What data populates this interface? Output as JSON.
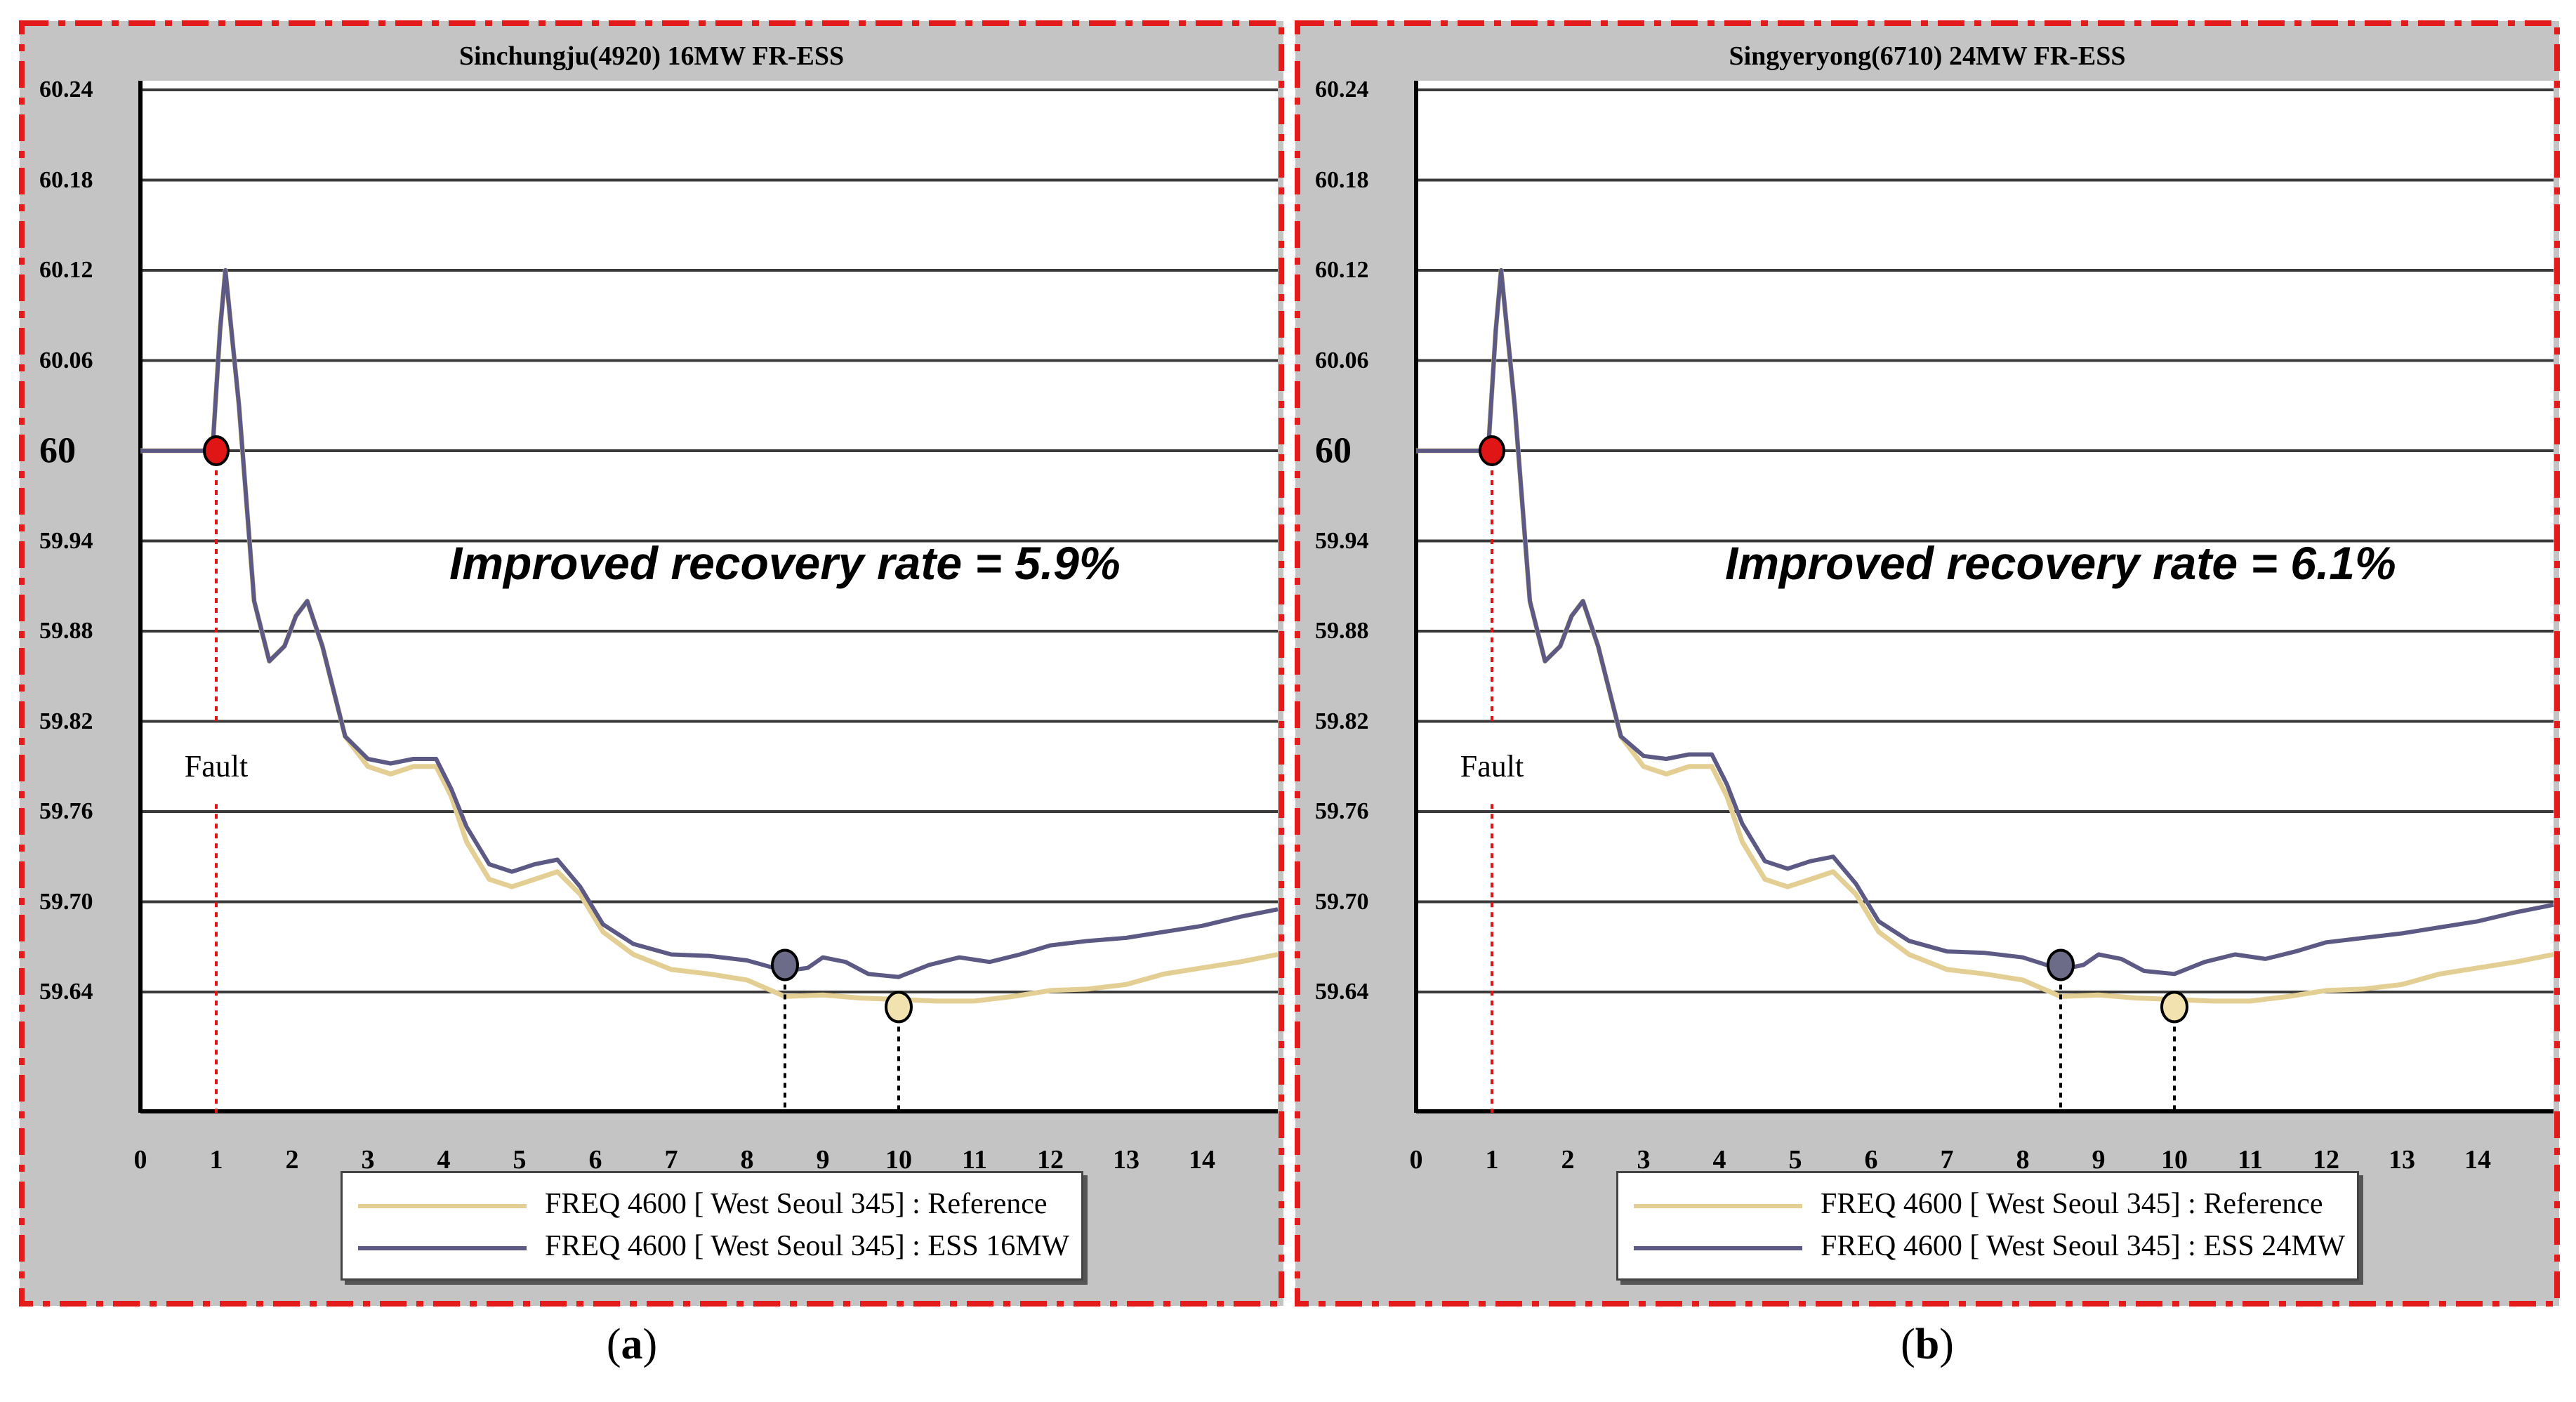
{
  "colors": {
    "reference": "#e3cf94",
    "ess": "#5c5a84",
    "fault_marker": "#e01616",
    "frame": "#e41b1b",
    "grid": "#3a3a3a",
    "panel_bg": "#c4c4c4"
  },
  "chart_data": [
    {
      "type": "line",
      "panel_label": "a",
      "title": "Sinchungju(4920) 16MW FR-ESS",
      "xlabel": "",
      "ylabel": "",
      "xlim": [
        0,
        15
      ],
      "ylim": [
        59.58,
        60.24
      ],
      "x_ticks": [
        0,
        1,
        2,
        3,
        4,
        5,
        6,
        7,
        8,
        9,
        10,
        11,
        12,
        13,
        14
      ],
      "y_ticks": [
        "60.24",
        "60.18",
        "60.12",
        "60.06",
        "60",
        "59.94",
        "59.88",
        "59.82",
        "59.76",
        "59.70",
        "59.64"
      ],
      "grid": true,
      "annotation": "Improved recovery rate  =  5.9%",
      "fault_label": "Fault",
      "fault_point": [
        1.0,
        60.0
      ],
      "ess_marker": [
        8.5,
        59.658
      ],
      "ref_marker": [
        10.0,
        59.63
      ],
      "series": [
        {
          "name": "FREQ 4600 [ West Seoul 345] : Reference",
          "role": "reference",
          "x": [
            0,
            0.5,
            0.95,
            1.05,
            1.12,
            1.3,
            1.5,
            1.7,
            1.9,
            2.05,
            2.2,
            2.4,
            2.7,
            3.0,
            3.3,
            3.6,
            3.9,
            4.1,
            4.3,
            4.6,
            4.9,
            5.2,
            5.5,
            5.8,
            6.1,
            6.5,
            7.0,
            7.5,
            8.0,
            8.5,
            9.0,
            9.5,
            10.0,
            10.5,
            11.0,
            11.5,
            12.0,
            12.5,
            13.0,
            13.5,
            14.0,
            14.5,
            15.0
          ],
          "y": [
            60.0,
            60.0,
            60.0,
            60.08,
            60.12,
            60.03,
            59.9,
            59.86,
            59.87,
            59.89,
            59.9,
            59.87,
            59.81,
            59.79,
            59.785,
            59.79,
            59.79,
            59.77,
            59.74,
            59.715,
            59.71,
            59.715,
            59.72,
            59.705,
            59.68,
            59.665,
            59.655,
            59.652,
            59.648,
            59.637,
            59.638,
            59.636,
            59.635,
            59.634,
            59.634,
            59.637,
            59.641,
            59.642,
            59.645,
            59.652,
            59.656,
            59.66,
            59.665
          ]
        },
        {
          "name": "FREQ 4600 [ West Seoul 345] : ESS 16MW",
          "role": "ess",
          "x": [
            0,
            0.5,
            0.95,
            1.05,
            1.12,
            1.3,
            1.5,
            1.7,
            1.9,
            2.05,
            2.2,
            2.4,
            2.7,
            3.0,
            3.3,
            3.6,
            3.9,
            4.1,
            4.3,
            4.6,
            4.9,
            5.2,
            5.5,
            5.8,
            6.1,
            6.5,
            7.0,
            7.5,
            8.0,
            8.5,
            8.8,
            9.0,
            9.3,
            9.6,
            10.0,
            10.4,
            10.8,
            11.2,
            11.6,
            12.0,
            12.5,
            13.0,
            13.5,
            14.0,
            14.5,
            15.0
          ],
          "y": [
            60.0,
            60.0,
            60.0,
            60.08,
            60.12,
            60.03,
            59.9,
            59.86,
            59.87,
            59.89,
            59.9,
            59.87,
            59.81,
            59.795,
            59.792,
            59.795,
            59.795,
            59.775,
            59.75,
            59.725,
            59.72,
            59.725,
            59.728,
            59.71,
            59.685,
            59.672,
            59.665,
            59.664,
            59.661,
            59.654,
            59.656,
            59.663,
            59.66,
            59.652,
            59.65,
            59.658,
            59.663,
            59.66,
            59.665,
            59.671,
            59.674,
            59.676,
            59.68,
            59.684,
            59.69,
            59.695
          ]
        }
      ]
    },
    {
      "type": "line",
      "panel_label": "b",
      "title": "Singyeryong(6710) 24MW FR-ESS",
      "xlabel": "",
      "ylabel": "",
      "xlim": [
        0,
        15
      ],
      "ylim": [
        59.58,
        60.24
      ],
      "x_ticks": [
        0,
        1,
        2,
        3,
        4,
        5,
        6,
        7,
        8,
        9,
        10,
        11,
        12,
        13,
        14
      ],
      "y_ticks": [
        "60.24",
        "60.18",
        "60.12",
        "60.06",
        "60",
        "59.94",
        "59.88",
        "59.82",
        "59.76",
        "59.70",
        "59.64"
      ],
      "grid": true,
      "annotation": "Improved recovery rate  =  6.1%",
      "fault_label": "Fault",
      "fault_point": [
        1.0,
        60.0
      ],
      "ess_marker": [
        8.5,
        59.658
      ],
      "ref_marker": [
        10.0,
        59.63
      ],
      "series": [
        {
          "name": "FREQ 4600 [ West Seoul 345] : Reference",
          "role": "reference",
          "x": [
            0,
            0.5,
            0.95,
            1.05,
            1.12,
            1.3,
            1.5,
            1.7,
            1.9,
            2.05,
            2.2,
            2.4,
            2.7,
            3.0,
            3.3,
            3.6,
            3.9,
            4.1,
            4.3,
            4.6,
            4.9,
            5.2,
            5.5,
            5.8,
            6.1,
            6.5,
            7.0,
            7.5,
            8.0,
            8.5,
            9.0,
            9.5,
            10.0,
            10.5,
            11.0,
            11.5,
            12.0,
            12.5,
            13.0,
            13.5,
            14.0,
            14.5,
            15.0
          ],
          "y": [
            60.0,
            60.0,
            60.0,
            60.08,
            60.12,
            60.03,
            59.9,
            59.86,
            59.87,
            59.89,
            59.9,
            59.87,
            59.81,
            59.79,
            59.785,
            59.79,
            59.79,
            59.77,
            59.74,
            59.715,
            59.71,
            59.715,
            59.72,
            59.705,
            59.68,
            59.665,
            59.655,
            59.652,
            59.648,
            59.637,
            59.638,
            59.636,
            59.635,
            59.634,
            59.634,
            59.637,
            59.641,
            59.642,
            59.645,
            59.652,
            59.656,
            59.66,
            59.665
          ]
        },
        {
          "name": "FREQ 4600 [ West Seoul 345] : ESS 24MW",
          "role": "ess",
          "x": [
            0,
            0.5,
            0.95,
            1.05,
            1.12,
            1.3,
            1.5,
            1.7,
            1.9,
            2.05,
            2.2,
            2.4,
            2.7,
            3.0,
            3.3,
            3.6,
            3.9,
            4.1,
            4.3,
            4.6,
            4.9,
            5.2,
            5.5,
            5.8,
            6.1,
            6.5,
            7.0,
            7.5,
            8.0,
            8.5,
            8.8,
            9.0,
            9.3,
            9.6,
            10.0,
            10.4,
            10.8,
            11.2,
            11.6,
            12.0,
            12.5,
            13.0,
            13.5,
            14.0,
            14.5,
            15.0
          ],
          "y": [
            60.0,
            60.0,
            60.0,
            60.08,
            60.12,
            60.03,
            59.9,
            59.86,
            59.87,
            59.89,
            59.9,
            59.87,
            59.81,
            59.797,
            59.795,
            59.798,
            59.798,
            59.778,
            59.752,
            59.727,
            59.722,
            59.727,
            59.73,
            59.712,
            59.687,
            59.674,
            59.667,
            59.666,
            59.663,
            59.655,
            59.658,
            59.665,
            59.662,
            59.654,
            59.652,
            59.66,
            59.665,
            59.662,
            59.667,
            59.673,
            59.676,
            59.679,
            59.683,
            59.687,
            59.693,
            59.698
          ]
        }
      ]
    }
  ]
}
